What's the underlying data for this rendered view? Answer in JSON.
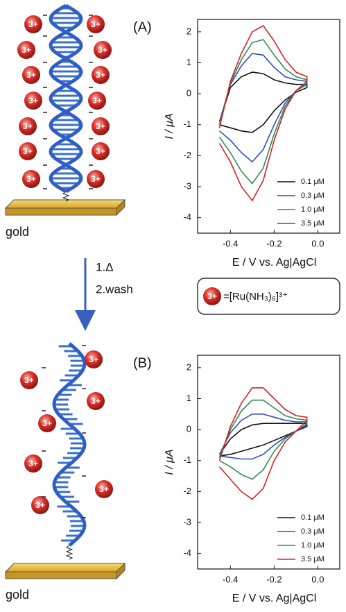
{
  "diagram": {
    "ion_label": "3+",
    "gold_label": "gold",
    "step_1": "1.Δ",
    "step_2": "2.wash",
    "key_label": "=[Ru(NH₃)₆]³⁺"
  },
  "chart_data": [
    {
      "type": "line",
      "panel_label": "(A)",
      "y_label": "I / μA",
      "x_label": "E / V vs. Ag|AgCl",
      "xlim": [
        -0.55,
        0.1
      ],
      "xticks": [
        -0.4,
        -0.2,
        {
          "value": 0,
          "label": "0.0"
        }
      ],
      "ylim": [
        -4.5,
        2.4
      ],
      "yticks": [
        -4,
        -3,
        -2,
        -1,
        0,
        1,
        2
      ],
      "legend": "lower right",
      "series": [
        {
          "name": "0.1 μM",
          "color": "#111111",
          "x": [
            -0.45,
            -0.4,
            -0.35,
            -0.3,
            -0.25,
            -0.2,
            -0.15,
            -0.1,
            -0.05,
            -0.05,
            -0.1,
            -0.15,
            -0.2,
            -0.25,
            -0.3,
            -0.35,
            -0.4,
            -0.45
          ],
          "values": [
            -0.9,
            0.2,
            0.55,
            0.7,
            0.65,
            0.45,
            0.35,
            0.3,
            0.3,
            0.2,
            0.05,
            -0.2,
            -0.55,
            -1.0,
            -1.25,
            -1.2,
            -1.1,
            -1.0
          ]
        },
        {
          "name": "0.3 μM",
          "color": "#2a4fb8",
          "x": [
            -0.45,
            -0.4,
            -0.35,
            -0.3,
            -0.25,
            -0.2,
            -0.15,
            -0.1,
            -0.05,
            -0.05,
            -0.1,
            -0.15,
            -0.2,
            -0.25,
            -0.3,
            -0.35,
            -0.4,
            -0.45
          ],
          "values": [
            -0.9,
            0.3,
            0.9,
            1.3,
            1.25,
            0.85,
            0.55,
            0.45,
            0.4,
            0.3,
            0.1,
            -0.3,
            -1.0,
            -1.8,
            -2.2,
            -1.9,
            -1.5,
            -1.2
          ]
        },
        {
          "name": "1.0 μM",
          "color": "#2e8b57",
          "x": [
            -0.45,
            -0.4,
            -0.35,
            -0.3,
            -0.25,
            -0.2,
            -0.15,
            -0.1,
            -0.05,
            -0.05,
            -0.1,
            -0.15,
            -0.2,
            -0.25,
            -0.3,
            -0.35,
            -0.4,
            -0.45
          ],
          "values": [
            -1.0,
            0.35,
            1.1,
            1.65,
            1.75,
            1.25,
            0.8,
            0.55,
            0.45,
            0.35,
            0.1,
            -0.4,
            -1.3,
            -2.4,
            -2.9,
            -2.5,
            -1.9,
            -1.4
          ]
        },
        {
          "name": "3.5 μM",
          "color": "#d62020",
          "x": [
            -0.45,
            -0.4,
            -0.35,
            -0.3,
            -0.25,
            -0.2,
            -0.15,
            -0.1,
            -0.05,
            -0.05,
            -0.1,
            -0.15,
            -0.2,
            -0.25,
            -0.3,
            -0.35,
            -0.4,
            -0.45
          ],
          "values": [
            -1.1,
            0.4,
            1.3,
            2.0,
            2.2,
            1.7,
            1.1,
            0.7,
            0.55,
            0.4,
            0.1,
            -0.5,
            -1.5,
            -2.8,
            -3.45,
            -3.0,
            -2.2,
            -1.6
          ]
        }
      ]
    },
    {
      "type": "line",
      "panel_label": "(B)",
      "y_label": "I / μA",
      "x_label": "E / V vs. Ag|AgCl",
      "xlim": [
        -0.55,
        0.1
      ],
      "xticks": [
        -0.4,
        -0.2,
        {
          "value": 0,
          "label": "0.0"
        }
      ],
      "ylim": [
        -4.5,
        2.4
      ],
      "yticks": [
        -4,
        -3,
        -2,
        -1,
        0,
        1,
        2
      ],
      "legend": "lower right",
      "series": [
        {
          "name": "0.1 μM",
          "color": "#111111",
          "x": [
            -0.45,
            -0.4,
            -0.35,
            -0.3,
            -0.25,
            -0.2,
            -0.15,
            -0.1,
            -0.05,
            -0.05,
            -0.1,
            -0.15,
            -0.2,
            -0.25,
            -0.3,
            -0.35,
            -0.4,
            -0.45
          ],
          "values": [
            -0.8,
            -0.3,
            0.0,
            0.15,
            0.2,
            0.2,
            0.2,
            0.2,
            0.2,
            0.1,
            -0.05,
            -0.2,
            -0.35,
            -0.5,
            -0.6,
            -0.7,
            -0.8,
            -0.85
          ]
        },
        {
          "name": "0.3 μM",
          "color": "#2a4fb8",
          "x": [
            -0.45,
            -0.4,
            -0.35,
            -0.3,
            -0.25,
            -0.2,
            -0.15,
            -0.1,
            -0.05,
            -0.05,
            -0.1,
            -0.15,
            -0.2,
            -0.25,
            -0.3,
            -0.35,
            -0.4,
            -0.45
          ],
          "values": [
            -0.8,
            -0.1,
            0.3,
            0.5,
            0.5,
            0.4,
            0.3,
            0.25,
            0.25,
            0.15,
            -0.05,
            -0.25,
            -0.5,
            -0.8,
            -0.95,
            -0.95,
            -0.9,
            -0.85
          ]
        },
        {
          "name": "1.0 μM",
          "color": "#2e8b57",
          "x": [
            -0.45,
            -0.4,
            -0.35,
            -0.3,
            -0.25,
            -0.2,
            -0.15,
            -0.1,
            -0.05,
            -0.05,
            -0.1,
            -0.15,
            -0.2,
            -0.25,
            -0.3,
            -0.35,
            -0.4,
            -0.45
          ],
          "values": [
            -0.9,
            0.0,
            0.6,
            0.95,
            0.95,
            0.7,
            0.45,
            0.35,
            0.3,
            0.2,
            -0.05,
            -0.3,
            -0.7,
            -1.3,
            -1.6,
            -1.45,
            -1.2,
            -1.0
          ]
        },
        {
          "name": "3.5 μM",
          "color": "#d62020",
          "x": [
            -0.45,
            -0.4,
            -0.35,
            -0.3,
            -0.25,
            -0.2,
            -0.15,
            -0.1,
            -0.05,
            -0.05,
            -0.1,
            -0.15,
            -0.2,
            -0.25,
            -0.3,
            -0.35,
            -0.4,
            -0.45
          ],
          "values": [
            -1.0,
            0.1,
            0.85,
            1.35,
            1.35,
            1.0,
            0.65,
            0.45,
            0.4,
            0.3,
            -0.05,
            -0.4,
            -1.0,
            -1.9,
            -2.25,
            -2.0,
            -1.6,
            -1.2
          ]
        }
      ]
    }
  ]
}
